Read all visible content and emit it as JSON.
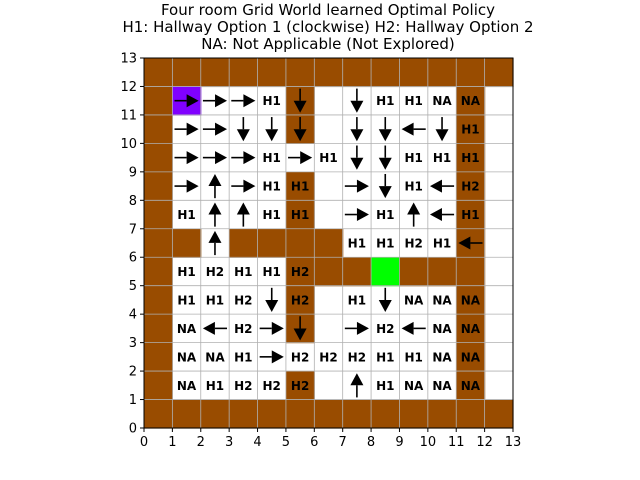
{
  "chart_data": {
    "type": "heatmap",
    "title_lines": [
      "Four room Grid World learned Optimal Policy",
      "H1: Hallway Option 1 (clockwise) H2: Hallway Option 2",
      "NA: Not Applicable (Not Explored)"
    ],
    "xlim": [
      0,
      13
    ],
    "ylim": [
      0,
      13
    ],
    "xticks": [
      "0",
      "1",
      "2",
      "3",
      "4",
      "5",
      "6",
      "7",
      "8",
      "9",
      "10",
      "11",
      "12",
      "13"
    ],
    "yticks": [
      "0",
      "1",
      "2",
      "3",
      "4",
      "5",
      "6",
      "7",
      "8",
      "9",
      "10",
      "11",
      "12",
      "13"
    ],
    "grid": true,
    "legend": {
      "H1": "Hallway Option 1 (clockwise)",
      "H2": "Hallway Option 2",
      "NA": "Not Applicable (Not Explored)"
    },
    "colors": {
      "wall": "#994c00",
      "free": "#ffffff",
      "start": "#8000ff",
      "goal": "#00ff00",
      "grid_line": "#b0b0b0"
    },
    "grid_rows_top_to_bottom": [
      "WWWWWWWWWWWWW",
      "WS...W.....W",
      "W....W.....W",
      "W..........W",
      "W....W.....W",
      "W....W.....W",
      "WW.WWWW....W",
      "W....WWWGWWW",
      "W....W.....W",
      "W....W.....W",
      "W..........W",
      "W....W.....W",
      "WWWWWWWWWWWWW"
    ],
    "cells": [
      {
        "x": 1,
        "y": 11,
        "a": "R"
      },
      {
        "x": 2,
        "y": 11,
        "a": "R"
      },
      {
        "x": 3,
        "y": 11,
        "a": "R"
      },
      {
        "x": 4,
        "y": 11,
        "a": "H1"
      },
      {
        "x": 5,
        "y": 11,
        "a": "D"
      },
      {
        "x": 7,
        "y": 11,
        "a": "D"
      },
      {
        "x": 8,
        "y": 11,
        "a": "H1"
      },
      {
        "x": 9,
        "y": 11,
        "a": "H1"
      },
      {
        "x": 10,
        "y": 11,
        "a": "NA"
      },
      {
        "x": 11,
        "y": 11,
        "a": "NA"
      },
      {
        "x": 1,
        "y": 10,
        "a": "R"
      },
      {
        "x": 2,
        "y": 10,
        "a": "R"
      },
      {
        "x": 3,
        "y": 10,
        "a": "D"
      },
      {
        "x": 4,
        "y": 10,
        "a": "D"
      },
      {
        "x": 5,
        "y": 10,
        "a": "D"
      },
      {
        "x": 7,
        "y": 10,
        "a": "D"
      },
      {
        "x": 8,
        "y": 10,
        "a": "D"
      },
      {
        "x": 9,
        "y": 10,
        "a": "L"
      },
      {
        "x": 10,
        "y": 10,
        "a": "D"
      },
      {
        "x": 11,
        "y": 10,
        "a": "H1"
      },
      {
        "x": 1,
        "y": 9,
        "a": "R"
      },
      {
        "x": 2,
        "y": 9,
        "a": "R"
      },
      {
        "x": 3,
        "y": 9,
        "a": "R"
      },
      {
        "x": 4,
        "y": 9,
        "a": "H1"
      },
      {
        "x": 5,
        "y": 9,
        "a": "R"
      },
      {
        "x": 6,
        "y": 9,
        "a": "H1"
      },
      {
        "x": 7,
        "y": 9,
        "a": "D"
      },
      {
        "x": 8,
        "y": 9,
        "a": "D"
      },
      {
        "x": 9,
        "y": 9,
        "a": "H1"
      },
      {
        "x": 10,
        "y": 9,
        "a": "H1"
      },
      {
        "x": 11,
        "y": 9,
        "a": "H1"
      },
      {
        "x": 1,
        "y": 8,
        "a": "R"
      },
      {
        "x": 2,
        "y": 8,
        "a": "U"
      },
      {
        "x": 3,
        "y": 8,
        "a": "R"
      },
      {
        "x": 4,
        "y": 8,
        "a": "H1"
      },
      {
        "x": 5,
        "y": 8,
        "a": "H1"
      },
      {
        "x": 7,
        "y": 8,
        "a": "R"
      },
      {
        "x": 8,
        "y": 8,
        "a": "D"
      },
      {
        "x": 9,
        "y": 8,
        "a": "H1"
      },
      {
        "x": 10,
        "y": 8,
        "a": "L"
      },
      {
        "x": 11,
        "y": 8,
        "a": "H2"
      },
      {
        "x": 1,
        "y": 7,
        "a": "H1"
      },
      {
        "x": 2,
        "y": 7,
        "a": "U"
      },
      {
        "x": 3,
        "y": 7,
        "a": "U"
      },
      {
        "x": 4,
        "y": 7,
        "a": "H1"
      },
      {
        "x": 5,
        "y": 7,
        "a": "H1"
      },
      {
        "x": 7,
        "y": 7,
        "a": "R"
      },
      {
        "x": 8,
        "y": 7,
        "a": "H1"
      },
      {
        "x": 9,
        "y": 7,
        "a": "U"
      },
      {
        "x": 10,
        "y": 7,
        "a": "L"
      },
      {
        "x": 11,
        "y": 7,
        "a": "H1"
      },
      {
        "x": 2,
        "y": 6,
        "a": "U"
      },
      {
        "x": 7,
        "y": 6,
        "a": "H1"
      },
      {
        "x": 8,
        "y": 6,
        "a": "H1"
      },
      {
        "x": 9,
        "y": 6,
        "a": "H2"
      },
      {
        "x": 10,
        "y": 6,
        "a": "H1"
      },
      {
        "x": 11,
        "y": 6,
        "a": "L"
      },
      {
        "x": 1,
        "y": 5,
        "a": "H1"
      },
      {
        "x": 2,
        "y": 5,
        "a": "H2"
      },
      {
        "x": 3,
        "y": 5,
        "a": "H1"
      },
      {
        "x": 4,
        "y": 5,
        "a": "H1"
      },
      {
        "x": 5,
        "y": 5,
        "a": "H2"
      },
      {
        "x": 1,
        "y": 4,
        "a": "H1"
      },
      {
        "x": 2,
        "y": 4,
        "a": "H1"
      },
      {
        "x": 3,
        "y": 4,
        "a": "H2"
      },
      {
        "x": 4,
        "y": 4,
        "a": "D"
      },
      {
        "x": 5,
        "y": 4,
        "a": "H2"
      },
      {
        "x": 7,
        "y": 4,
        "a": "H1"
      },
      {
        "x": 8,
        "y": 4,
        "a": "D"
      },
      {
        "x": 9,
        "y": 4,
        "a": "NA"
      },
      {
        "x": 10,
        "y": 4,
        "a": "NA"
      },
      {
        "x": 11,
        "y": 4,
        "a": "NA"
      },
      {
        "x": 1,
        "y": 3,
        "a": "NA"
      },
      {
        "x": 2,
        "y": 3,
        "a": "L"
      },
      {
        "x": 3,
        "y": 3,
        "a": "H2"
      },
      {
        "x": 4,
        "y": 3,
        "a": "R"
      },
      {
        "x": 5,
        "y": 3,
        "a": "D"
      },
      {
        "x": 7,
        "y": 3,
        "a": "R"
      },
      {
        "x": 8,
        "y": 3,
        "a": "H2"
      },
      {
        "x": 9,
        "y": 3,
        "a": "L"
      },
      {
        "x": 10,
        "y": 3,
        "a": "NA"
      },
      {
        "x": 11,
        "y": 3,
        "a": "NA"
      },
      {
        "x": 1,
        "y": 2,
        "a": "NA"
      },
      {
        "x": 2,
        "y": 2,
        "a": "NA"
      },
      {
        "x": 3,
        "y": 2,
        "a": "H1"
      },
      {
        "x": 4,
        "y": 2,
        "a": "R"
      },
      {
        "x": 5,
        "y": 2,
        "a": "H2"
      },
      {
        "x": 6,
        "y": 2,
        "a": "H2"
      },
      {
        "x": 7,
        "y": 2,
        "a": "H2"
      },
      {
        "x": 8,
        "y": 2,
        "a": "H1"
      },
      {
        "x": 9,
        "y": 2,
        "a": "H1"
      },
      {
        "x": 10,
        "y": 2,
        "a": "NA"
      },
      {
        "x": 11,
        "y": 2,
        "a": "NA"
      },
      {
        "x": 1,
        "y": 1,
        "a": "NA"
      },
      {
        "x": 2,
        "y": 1,
        "a": "H1"
      },
      {
        "x": 3,
        "y": 1,
        "a": "H2"
      },
      {
        "x": 4,
        "y": 1,
        "a": "H2"
      },
      {
        "x": 5,
        "y": 1,
        "a": "H2"
      },
      {
        "x": 7,
        "y": 1,
        "a": "U"
      },
      {
        "x": 8,
        "y": 1,
        "a": "H1"
      },
      {
        "x": 9,
        "y": 1,
        "a": "NA"
      },
      {
        "x": 10,
        "y": 1,
        "a": "NA"
      },
      {
        "x": 11,
        "y": 1,
        "a": "NA"
      }
    ]
  }
}
